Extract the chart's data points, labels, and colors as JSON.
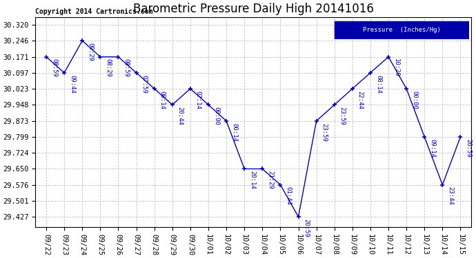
{
  "title": "Barometric Pressure Daily High 20141016",
  "copyright": "Copyright 2014 Cartronics.com",
  "legend_label": "Pressure  (Inches/Hg)",
  "data_points": [
    {
      "date": "09/22",
      "value": 30.171,
      "label": "08:59"
    },
    {
      "date": "09/23",
      "value": 30.097,
      "label": "09:44"
    },
    {
      "date": "09/24",
      "value": 30.246,
      "label": "09:29"
    },
    {
      "date": "09/25",
      "value": 30.171,
      "label": "08:29"
    },
    {
      "date": "09/26",
      "value": 30.171,
      "label": "08:59"
    },
    {
      "date": "09/27",
      "value": 30.097,
      "label": "07:59"
    },
    {
      "date": "09/28",
      "value": 30.023,
      "label": "08:14"
    },
    {
      "date": "09/29",
      "value": 29.948,
      "label": "20:44"
    },
    {
      "date": "09/30",
      "value": 30.023,
      "label": "07:14"
    },
    {
      "date": "10/01",
      "value": 29.948,
      "label": "00:00"
    },
    {
      "date": "10/02",
      "value": 29.873,
      "label": "00:14"
    },
    {
      "date": "10/03",
      "value": 29.65,
      "label": "20:14"
    },
    {
      "date": "10/04",
      "value": 29.65,
      "label": "21:29"
    },
    {
      "date": "10/05",
      "value": 29.576,
      "label": "01:44"
    },
    {
      "date": "10/06",
      "value": 29.427,
      "label": "20:59"
    },
    {
      "date": "10/07",
      "value": 29.873,
      "label": "23:59"
    },
    {
      "date": "10/08",
      "value": 29.948,
      "label": "23:59"
    },
    {
      "date": "10/09",
      "value": 30.023,
      "label": "22:44"
    },
    {
      "date": "10/10",
      "value": 30.097,
      "label": "08:14"
    },
    {
      "date": "10/11",
      "value": 30.171,
      "label": "10:29"
    },
    {
      "date": "10/12",
      "value": 30.023,
      "label": "00:00"
    },
    {
      "date": "10/13",
      "value": 29.799,
      "label": "09:14"
    },
    {
      "date": "10/14",
      "value": 29.576,
      "label": "23:44"
    },
    {
      "date": "10/15",
      "value": 29.799,
      "label": "20:59"
    }
  ],
  "yticks": [
    29.427,
    29.501,
    29.576,
    29.65,
    29.724,
    29.799,
    29.873,
    29.948,
    30.023,
    30.097,
    30.171,
    30.246,
    30.32
  ],
  "ylim_min": 29.38,
  "ylim_max": 30.355,
  "line_color": "#0000bb",
  "grid_color": "#bbbbbb",
  "bg_color": "#ffffff",
  "title_fontsize": 12,
  "annot_fontsize": 6.5,
  "tick_fontsize": 7.5,
  "copyright_fontsize": 7,
  "legend_bg_color": "#0000aa",
  "legend_text_color": "#ffffff"
}
